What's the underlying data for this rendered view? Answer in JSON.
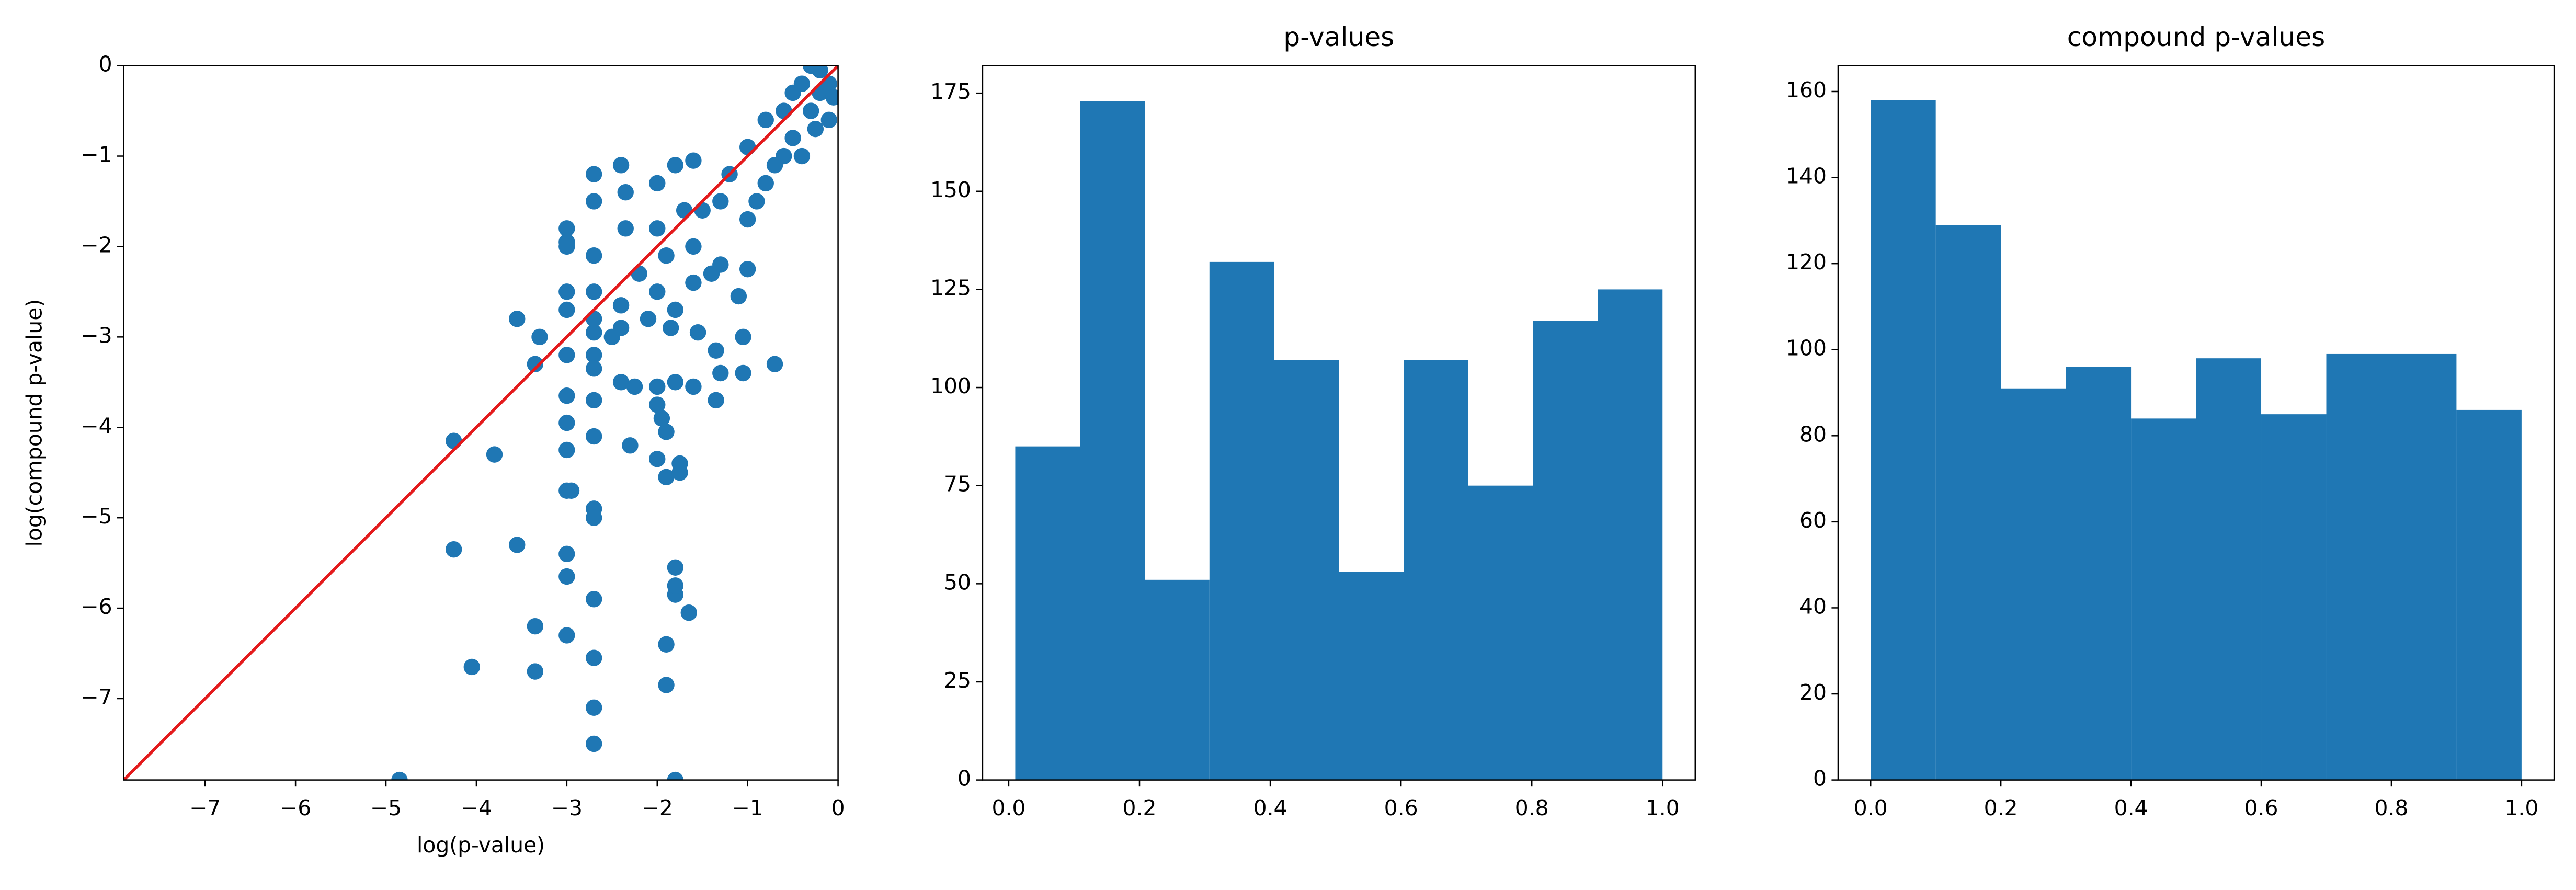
{
  "chart_data": [
    {
      "type": "scatter",
      "xlabel": "log(p-value)",
      "ylabel": "log(compound p-value)",
      "color": "#1f77b4",
      "diagonal_color": "#e41a1c",
      "xlim": [
        -7.9,
        0
      ],
      "ylim": [
        -7.9,
        0
      ],
      "xticks": [
        {
          "value": -7,
          "label": "−7"
        },
        {
          "value": -6,
          "label": "−6"
        },
        {
          "value": -5,
          "label": "−5"
        },
        {
          "value": -4,
          "label": "−4"
        },
        {
          "value": -3,
          "label": "−3"
        },
        {
          "value": -2,
          "label": "−2"
        },
        {
          "value": -1,
          "label": "−1"
        },
        0
      ],
      "yticks": [
        {
          "value": -7,
          "label": "−7"
        },
        {
          "value": -6,
          "label": "−6"
        },
        {
          "value": -5,
          "label": "−5"
        },
        {
          "value": -4,
          "label": "−4"
        },
        {
          "value": -3,
          "label": "−3"
        },
        {
          "value": -2,
          "label": "−2"
        },
        {
          "value": -1,
          "label": "−1"
        },
        0
      ],
      "x": [
        -4.85,
        -1.8,
        -2.7,
        -2.7,
        -3.35,
        -4.05,
        -3.35,
        -3.0,
        -2.7,
        -1.9,
        -1.9,
        -1.65,
        -1.8,
        -1.8,
        -1.8,
        -2.7,
        -3.0,
        -3.0,
        -3.55,
        -4.25,
        -3.0,
        -2.95,
        -2.7,
        -2.7,
        -1.9,
        -1.75,
        -1.75,
        -2.0,
        -4.25,
        -3.8,
        -3.0,
        -2.7,
        -2.3,
        -1.9,
        -1.95,
        -2.0,
        -3.0,
        -3.0,
        -2.7,
        -1.35,
        -0.7,
        -3.55,
        -3.3,
        -3.35,
        -3.0,
        -2.7,
        -2.7,
        -2.4,
        -2.25,
        -2.0,
        -1.8,
        -1.6,
        -1.3,
        -1.05,
        -1.35,
        -1.05,
        -1.55,
        -1.85,
        -2.4,
        -2.5,
        -2.7,
        -2.7,
        -3.0,
        -3.0,
        -2.7,
        -2.4,
        -2.2,
        -2.0,
        -1.8,
        -1.6,
        -1.1,
        -1.0,
        -1.3,
        -1.6,
        -1.7,
        -1.8,
        -2.0,
        -2.4,
        -2.7,
        -2.7,
        -3.0,
        -3.0,
        -3.0,
        -2.7,
        -2.35,
        -2.35,
        -2.0,
        -1.2,
        -1.0,
        -1.0,
        -0.8,
        -0.6,
        -0.5,
        -0.3,
        -0.2,
        -0.1,
        -0.3,
        -0.2,
        -0.05,
        -0.6,
        -0.8,
        -1.5,
        -1.4,
        -0.9,
        -0.4,
        -0.5,
        -0.4,
        -0.1,
        -1.6,
        -1.3,
        -1.9,
        -2.1,
        -0.7,
        -0.25
      ],
      "y": [
        -7.9,
        -7.9,
        -7.5,
        -7.1,
        -6.7,
        -6.65,
        -6.2,
        -6.3,
        -6.55,
        -6.85,
        -6.4,
        -6.05,
        -5.85,
        -5.75,
        -5.55,
        -5.9,
        -5.65,
        -5.4,
        -5.3,
        -5.35,
        -4.7,
        -4.7,
        -4.9,
        -5.0,
        -4.55,
        -4.5,
        -4.4,
        -4.35,
        -4.15,
        -4.3,
        -4.25,
        -4.1,
        -4.2,
        -4.05,
        -3.9,
        -3.75,
        -3.95,
        -3.65,
        -3.7,
        -3.7,
        -3.3,
        -2.8,
        -3.0,
        -3.3,
        -3.2,
        -3.2,
        -3.35,
        -3.5,
        -3.55,
        -3.55,
        -3.5,
        -3.55,
        -3.4,
        -3.4,
        -3.15,
        -3.0,
        -2.95,
        -2.9,
        -2.9,
        -3.0,
        -2.95,
        -2.8,
        -2.7,
        -2.5,
        -2.5,
        -2.65,
        -2.3,
        -2.5,
        -2.7,
        -2.4,
        -2.55,
        -2.25,
        -2.2,
        -2.0,
        -1.6,
        -1.1,
        -1.3,
        -1.1,
        -1.2,
        -1.5,
        -1.8,
        -1.95,
        -2.0,
        -2.1,
        -1.4,
        -1.8,
        -1.8,
        -1.2,
        -0.9,
        -1.7,
        -1.3,
        -1.0,
        -0.8,
        -0.5,
        -0.3,
        -0.2,
        0,
        -0.05,
        -0.35,
        -0.5,
        -0.6,
        -1.6,
        -2.3,
        -1.5,
        -1.0,
        -0.3,
        -0.2,
        -0.6,
        -1.05,
        -1.5,
        -2.1,
        -2.8,
        -1.1,
        -0.7
      ]
    },
    {
      "type": "histogram",
      "title": "p-values",
      "color": "#1f77b4",
      "bins": [
        0.01,
        0.109,
        0.208,
        0.307,
        0.406,
        0.505,
        0.604,
        0.703,
        0.802,
        0.901,
        1.0
      ],
      "values": [
        85,
        173,
        51,
        132,
        107,
        53,
        107,
        75,
        117,
        125
      ],
      "xlim": [
        -0.04,
        1.05
      ],
      "ylim": [
        0,
        182
      ],
      "xticks": [
        {
          "value": 0,
          "label": "0.0"
        },
        0.2,
        0.4,
        0.6,
        0.8,
        {
          "value": 1,
          "label": "1.0"
        }
      ],
      "yticks": [
        0,
        25,
        50,
        75,
        100,
        125,
        150,
        175
      ]
    },
    {
      "type": "histogram",
      "title": "compound p-values",
      "color": "#1f77b4",
      "bins": [
        0,
        0.1,
        0.2,
        0.3,
        0.4,
        0.5,
        0.6,
        0.7,
        0.8,
        0.9,
        1.0
      ],
      "values": [
        158,
        129,
        91,
        96,
        84,
        98,
        85,
        99,
        99,
        86
      ],
      "xlim": [
        -0.05,
        1.05
      ],
      "ylim": [
        0,
        166
      ],
      "xticks": [
        {
          "value": 0,
          "label": "0.0"
        },
        0.2,
        0.4,
        0.6,
        0.8,
        {
          "value": 1,
          "label": "1.0"
        }
      ],
      "yticks": [
        0,
        20,
        40,
        60,
        80,
        100,
        120,
        140,
        160
      ]
    }
  ]
}
